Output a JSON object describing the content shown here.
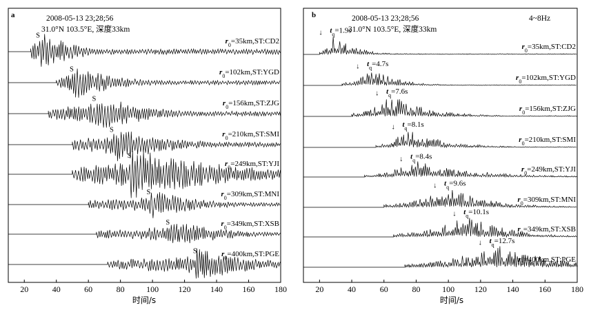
{
  "panels": [
    {
      "id": "a",
      "letter": "a",
      "header": [
        "2008-05-13 23;28;56",
        "31.0°N 103.5°E, 深度33km"
      ],
      "band": "",
      "xlabel": "时间/s",
      "xticks": [
        20,
        40,
        60,
        80,
        100,
        120,
        140,
        160,
        180
      ],
      "xlim": [
        10,
        180
      ],
      "traces": [
        {
          "r0": "35km",
          "st": "CD2",
          "label": "=35km,ST:CD2",
          "s_time": 29,
          "onset": 24,
          "amp": 34,
          "dur": 30
        },
        {
          "r0": "102km",
          "st": "YGD",
          "label": "=102km,ST:YGD",
          "s_time": 50,
          "onset": 40,
          "amp": 26,
          "dur": 42
        },
        {
          "r0": "156km",
          "st": "ZJG",
          "label": "=156km,ST:ZJG",
          "s_time": 64,
          "onset": 35,
          "amp": 30,
          "dur": 48
        },
        {
          "r0": "210km",
          "st": "SMI",
          "label": "=210km,ST:SMI",
          "s_time": 75,
          "onset": 50,
          "amp": 30,
          "dur": 50
        },
        {
          "r0": "249km",
          "st": "YJI",
          "label": "=249km,ST:YJI",
          "s_time": 86,
          "onset": 50,
          "amp": 40,
          "dur": 90
        },
        {
          "r0": "309km",
          "st": "MNI",
          "label": "=309km,ST:MNI",
          "s_time": 98,
          "onset": 60,
          "amp": 24,
          "dur": 45
        },
        {
          "r0": "349km",
          "st": "XSB",
          "label": "=349km,ST:XSB",
          "s_time": 110,
          "onset": 65,
          "amp": 22,
          "dur": 50
        },
        {
          "r0": "400km",
          "st": "PGE",
          "label": "=400km,ST:PGE",
          "s_time": 127,
          "onset": 72,
          "amp": 26,
          "dur": 55
        }
      ]
    },
    {
      "id": "b",
      "letter": "b",
      "header": [
        "2008-05-13 23;28;56",
        "31.0°N 103.5°E, 深度33km"
      ],
      "band": "4~8Hz",
      "xlabel": "时间/s",
      "xticks": [
        20,
        40,
        60,
        80,
        100,
        120,
        140,
        160,
        180
      ],
      "xlim": [
        10,
        180
      ],
      "traces": [
        {
          "r0": "35km",
          "st": "CD2",
          "label": "=35km,ST:CD2",
          "tq": "=1.9s",
          "peak": 29,
          "onset": 20,
          "amp": 30,
          "dur": 28
        },
        {
          "r0": "102km",
          "st": "YGD",
          "label": "=102km,ST:YGD",
          "tq": "=4.7s",
          "peak": 52,
          "onset": 34,
          "amp": 26,
          "dur": 36
        },
        {
          "r0": "156km",
          "st": "ZJG",
          "label": "=156km,ST:ZJG",
          "tq": "=7.6s",
          "peak": 64,
          "onset": 40,
          "amp": 32,
          "dur": 50
        },
        {
          "r0": "210km",
          "st": "SMI",
          "label": "=210km,ST:SMI",
          "tq": "=8.1s",
          "peak": 74,
          "onset": 55,
          "amp": 28,
          "dur": 50
        },
        {
          "r0": "249km",
          "st": "YJI",
          "label": "=249km,ST:YJI",
          "tq": "=8.4s",
          "peak": 79,
          "onset": 48,
          "amp": 24,
          "dur": 80
        },
        {
          "r0": "309km",
          "st": "MNI",
          "label": "=309km,ST:MNI",
          "tq": "=9.6s",
          "peak": 100,
          "onset": 60,
          "amp": 30,
          "dur": 55
        },
        {
          "r0": "349km",
          "st": "XSB",
          "label": "=349km,ST:XSB",
          "tq": "=10.1s",
          "peak": 112,
          "onset": 66,
          "amp": 32,
          "dur": 55
        },
        {
          "r0": "400km",
          "st": "PGE",
          "label": "=400km,ST:PGE",
          "tq": "=12.7s",
          "peak": 128,
          "onset": 73,
          "amp": 34,
          "dur": 85
        }
      ]
    }
  ]
}
